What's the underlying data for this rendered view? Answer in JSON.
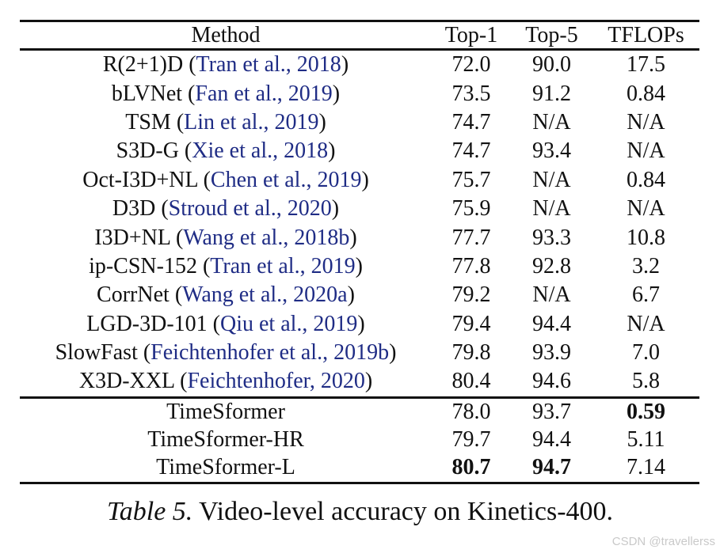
{
  "colors": {
    "text": "#111111",
    "citation_link": "#1f2c85",
    "watermark": "#c9c9c9",
    "background": "#ffffff"
  },
  "table": {
    "columns": [
      "Method",
      "Top-1",
      "Top-5",
      "TFLOPs"
    ],
    "baseline_rows": [
      {
        "method": "R(2+1)D",
        "cite": "Tran et al., 2018",
        "top1": "72.0",
        "top5": "90.0",
        "tflops": "17.5",
        "bold": []
      },
      {
        "method": "bLVNet",
        "cite": "Fan et al., 2019",
        "top1": "73.5",
        "top5": "91.2",
        "tflops": "0.84",
        "bold": []
      },
      {
        "method": "TSM",
        "cite": "Lin et al., 2019",
        "top1": "74.7",
        "top5": "N/A",
        "tflops": "N/A",
        "bold": []
      },
      {
        "method": "S3D-G",
        "cite": "Xie et al., 2018",
        "top1": "74.7",
        "top5": "93.4",
        "tflops": "N/A",
        "bold": []
      },
      {
        "method": "Oct-I3D+NL",
        "cite": "Chen et al., 2019",
        "top1": "75.7",
        "top5": "N/A",
        "tflops": "0.84",
        "bold": []
      },
      {
        "method": "D3D",
        "cite": "Stroud et al., 2020",
        "top1": "75.9",
        "top5": "N/A",
        "tflops": "N/A",
        "bold": []
      },
      {
        "method": "I3D+NL",
        "cite": "Wang et al., 2018b",
        "top1": "77.7",
        "top5": "93.3",
        "tflops": "10.8",
        "bold": []
      },
      {
        "method": "ip-CSN-152",
        "cite": "Tran et al., 2019",
        "top1": "77.8",
        "top5": "92.8",
        "tflops": "3.2",
        "bold": []
      },
      {
        "method": "CorrNet",
        "cite": "Wang et al., 2020a",
        "top1": "79.2",
        "top5": "N/A",
        "tflops": "6.7",
        "bold": []
      },
      {
        "method": "LGD-3D-101",
        "cite": "Qiu et al., 2019",
        "top1": "79.4",
        "top5": "94.4",
        "tflops": "N/A",
        "bold": []
      },
      {
        "method": "SlowFast",
        "cite": "Feichtenhofer et al., 2019b",
        "top1": "79.8",
        "top5": "93.9",
        "tflops": "7.0",
        "bold": []
      },
      {
        "method": "X3D-XXL",
        "cite": "Feichtenhofer, 2020",
        "top1": "80.4",
        "top5": "94.6",
        "tflops": "5.8",
        "bold": []
      }
    ],
    "ours_rows": [
      {
        "method": "TimeSformer",
        "cite": null,
        "top1": "78.0",
        "top5": "93.7",
        "tflops": "0.59",
        "bold": [
          "tflops"
        ]
      },
      {
        "method": "TimeSformer-HR",
        "cite": null,
        "top1": "79.7",
        "top5": "94.4",
        "tflops": "5.11",
        "bold": []
      },
      {
        "method": "TimeSformer-L",
        "cite": null,
        "top1": "80.7",
        "top5": "94.7",
        "tflops": "7.14",
        "bold": [
          "top1",
          "top5"
        ]
      }
    ]
  },
  "caption": {
    "label": "Table 5.",
    "text": " Video-level accuracy on Kinetics-400."
  },
  "watermark": "CSDN @travellerss"
}
